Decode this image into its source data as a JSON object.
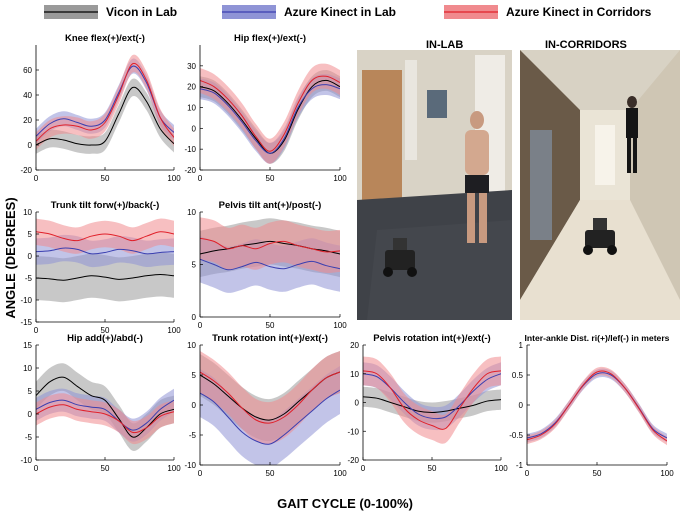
{
  "legend": {
    "items": [
      {
        "label": "Vicon in Lab",
        "color": "#000000",
        "band": "#9a9a9a"
      },
      {
        "label": "Azure Kinect in Lab",
        "color": "#3a3fb0",
        "band": "#8f94d6"
      },
      {
        "label": "Azure Kinect in Corridors",
        "color": "#e0202a",
        "band": "#f08a8e"
      }
    ]
  },
  "axis_titles": {
    "y": "ANGLE (DEGREES)",
    "x": "GAIT CYCLE (0-100%)"
  },
  "photos": {
    "lab_label": "IN-LAB",
    "corridor_label": "IN-CORRIDORS"
  },
  "chart_data": [
    {
      "type": "line",
      "title": "Knee flex(+)/ext(-)",
      "x": [
        0,
        10,
        20,
        30,
        40,
        50,
        60,
        70,
        80,
        90,
        100
      ],
      "xlim": [
        0,
        100
      ],
      "ylim": [
        -20,
        80
      ],
      "yticks": [
        -20,
        0,
        20,
        40,
        60
      ],
      "xticks": [
        0,
        50,
        100
      ],
      "series": [
        {
          "name": "Vicon in Lab",
          "values": [
            0,
            5,
            4,
            1,
            0,
            3,
            25,
            46,
            35,
            13,
            1
          ],
          "spread": 7
        },
        {
          "name": "Azure Kinect in Lab",
          "values": [
            7,
            17,
            21,
            18,
            15,
            20,
            42,
            63,
            50,
            22,
            10
          ],
          "spread": 6
        },
        {
          "name": "Azure Kinect in Corridors",
          "values": [
            3,
            13,
            16,
            15,
            12,
            18,
            40,
            65,
            52,
            22,
            6
          ],
          "spread": 7
        }
      ]
    },
    {
      "type": "line",
      "title": "Hip flex(+)/ext(-)",
      "x": [
        0,
        10,
        20,
        30,
        40,
        50,
        60,
        70,
        80,
        90,
        100
      ],
      "xlim": [
        0,
        100
      ],
      "ylim": [
        -20,
        40
      ],
      "yticks": [
        -20,
        -10,
        0,
        10,
        20,
        30
      ],
      "xticks": [
        0,
        50,
        100
      ],
      "series": [
        {
          "name": "Vicon in Lab",
          "values": [
            20,
            18,
            12,
            4,
            -5,
            -12,
            -6,
            9,
            20,
            23,
            20
          ],
          "spread": 5
        },
        {
          "name": "Azure Kinect in Lab",
          "values": [
            19,
            17,
            11,
            3,
            -6,
            -12,
            -5,
            10,
            19,
            21,
            19
          ],
          "spread": 5
        },
        {
          "name": "Azure Kinect in Corridors",
          "values": [
            23,
            20,
            14,
            6,
            -4,
            -11,
            -3,
            12,
            23,
            25,
            22
          ],
          "spread": 6
        }
      ]
    },
    {
      "type": "line",
      "title": "Trunk tilt forw(+)/back(-)",
      "x": [
        0,
        10,
        20,
        30,
        40,
        50,
        60,
        70,
        80,
        90,
        100
      ],
      "xlim": [
        0,
        100
      ],
      "ylim": [
        -15,
        10
      ],
      "yticks": [
        -15,
        -10,
        -5,
        0,
        5,
        10
      ],
      "xticks": [
        0,
        50,
        100
      ],
      "series": [
        {
          "name": "Vicon in Lab",
          "values": [
            -5,
            -5.2,
            -5.5,
            -5,
            -4.5,
            -4.8,
            -5.3,
            -5,
            -4.5,
            -4.2,
            -4.5
          ],
          "spread": 5
        },
        {
          "name": "Azure Kinect in Lab",
          "values": [
            1,
            1.2,
            1.8,
            1.5,
            0.5,
            0.8,
            1.5,
            1.2,
            0.5,
            0.8,
            1
          ],
          "spread": 3
        },
        {
          "name": "Azure Kinect in Corridors",
          "values": [
            5.5,
            5,
            4,
            3.5,
            4.5,
            5,
            4.5,
            3.5,
            4.5,
            5.5,
            5
          ],
          "spread": 3
        }
      ]
    },
    {
      "type": "line",
      "title": "Pelvis tilt ant(+)/post(-)",
      "x": [
        0,
        10,
        20,
        30,
        40,
        50,
        60,
        70,
        80,
        90,
        100
      ],
      "xlim": [
        0,
        100
      ],
      "ylim": [
        0,
        10
      ],
      "yticks": [
        0,
        5,
        10
      ],
      "xticks": [
        0,
        50,
        100
      ],
      "series": [
        {
          "name": "Vicon in Lab",
          "values": [
            6,
            6.3,
            6.5,
            6.8,
            7,
            7.2,
            7,
            6.8,
            6.5,
            6.3,
            6
          ],
          "spread": 2.2
        },
        {
          "name": "Azure Kinect in Lab",
          "values": [
            5.5,
            5,
            4.5,
            4.8,
            5.2,
            4.8,
            4.6,
            5,
            5.3,
            4.9,
            4.6
          ],
          "spread": 2.2
        },
        {
          "name": "Azure Kinect in Corridors",
          "values": [
            7.5,
            7.2,
            6.5,
            6.8,
            6.5,
            7,
            7.2,
            6.8,
            6.5,
            6.2,
            6.3
          ],
          "spread": 2
        }
      ]
    },
    {
      "type": "line",
      "title": "Hip add(+)/abd(-)",
      "x": [
        0,
        10,
        20,
        30,
        40,
        50,
        60,
        70,
        80,
        90,
        100
      ],
      "xlim": [
        0,
        100
      ],
      "ylim": [
        -10,
        15
      ],
      "yticks": [
        -10,
        -5,
        0,
        5,
        10,
        15
      ],
      "xticks": [
        0,
        50,
        100
      ],
      "series": [
        {
          "name": "Vicon in Lab",
          "values": [
            4,
            7,
            8,
            6,
            4,
            3,
            -1,
            -5,
            -3,
            0,
            1
          ],
          "spread": 3
        },
        {
          "name": "Azure Kinect in Lab",
          "values": [
            1,
            2.5,
            3,
            2,
            1.5,
            1,
            -1.5,
            -3.5,
            -2,
            1,
            3
          ],
          "spread": 2.5
        },
        {
          "name": "Azure Kinect in Corridors",
          "values": [
            0,
            1.5,
            2,
            1,
            0.5,
            0,
            -1.5,
            -4,
            -3,
            -0.5,
            0.5
          ],
          "spread": 2.5
        }
      ]
    },
    {
      "type": "line",
      "title": "Trunk rotation int(+)/ext(-)",
      "x": [
        0,
        10,
        20,
        30,
        40,
        50,
        60,
        70,
        80,
        90,
        100
      ],
      "xlim": [
        0,
        100
      ],
      "ylim": [
        -10,
        10
      ],
      "yticks": [
        -10,
        -5,
        0,
        5,
        10
      ],
      "xticks": [
        0,
        50,
        100
      ],
      "series": [
        {
          "name": "Vicon in Lab",
          "values": [
            5,
            3.5,
            1.5,
            -0.5,
            -2,
            -2.5,
            -1.5,
            0.5,
            2.5,
            4.5,
            5.5
          ],
          "spread": 3.5
        },
        {
          "name": "Azure Kinect in Lab",
          "values": [
            2,
            0.5,
            -2,
            -4.5,
            -6,
            -6.5,
            -5,
            -3,
            -1,
            1,
            2.5
          ],
          "spread": 4
        },
        {
          "name": "Azure Kinect in Corridors",
          "values": [
            5.5,
            4,
            2,
            -0.5,
            -2.5,
            -3,
            -2,
            0,
            2.5,
            4.5,
            5.5
          ],
          "spread": 3.5
        }
      ]
    },
    {
      "type": "line",
      "title": "Pelvis rotation int(+)/ext(-)",
      "x": [
        0,
        10,
        20,
        30,
        40,
        50,
        60,
        70,
        80,
        90,
        100
      ],
      "xlim": [
        0,
        100
      ],
      "ylim": [
        -20,
        20
      ],
      "yticks": [
        -20,
        -10,
        0,
        10,
        20
      ],
      "xticks": [
        0,
        50,
        100
      ],
      "series": [
        {
          "name": "Vicon in Lab",
          "values": [
            2,
            1.5,
            0,
            -1.5,
            -3,
            -3.5,
            -3,
            -2,
            -1,
            0.5,
            1
          ],
          "spread": 3.5
        },
        {
          "name": "Azure Kinect in Lab",
          "values": [
            10,
            9,
            5,
            0,
            -4,
            -5.5,
            -5,
            -1,
            4,
            8,
            10
          ],
          "spread": 4
        },
        {
          "name": "Azure Kinect in Corridors",
          "values": [
            11,
            10,
            5,
            -2,
            -6,
            -8,
            -9,
            -2,
            5,
            10,
            11
          ],
          "spread": 5
        }
      ]
    },
    {
      "type": "line",
      "title": "Inter-ankle Dist. ri(+)/lef(-) in meters",
      "x": [
        0,
        10,
        20,
        30,
        40,
        50,
        60,
        70,
        80,
        90,
        100
      ],
      "xlim": [
        0,
        100
      ],
      "ylim": [
        -1,
        1
      ],
      "yticks": [
        -1,
        -0.5,
        0,
        0.5,
        1
      ],
      "xticks": [
        0,
        50,
        100
      ],
      "series": [
        {
          "name": "Azure Kinect in Lab",
          "values": [
            -0.55,
            -0.48,
            -0.3,
            0,
            0.32,
            0.52,
            0.5,
            0.28,
            -0.05,
            -0.4,
            -0.55
          ],
          "spread": 0.07
        },
        {
          "name": "Azure Kinect in Corridors",
          "values": [
            -0.58,
            -0.5,
            -0.32,
            0,
            0.33,
            0.55,
            0.52,
            0.28,
            -0.06,
            -0.42,
            -0.6
          ],
          "spread": 0.07
        }
      ]
    }
  ]
}
